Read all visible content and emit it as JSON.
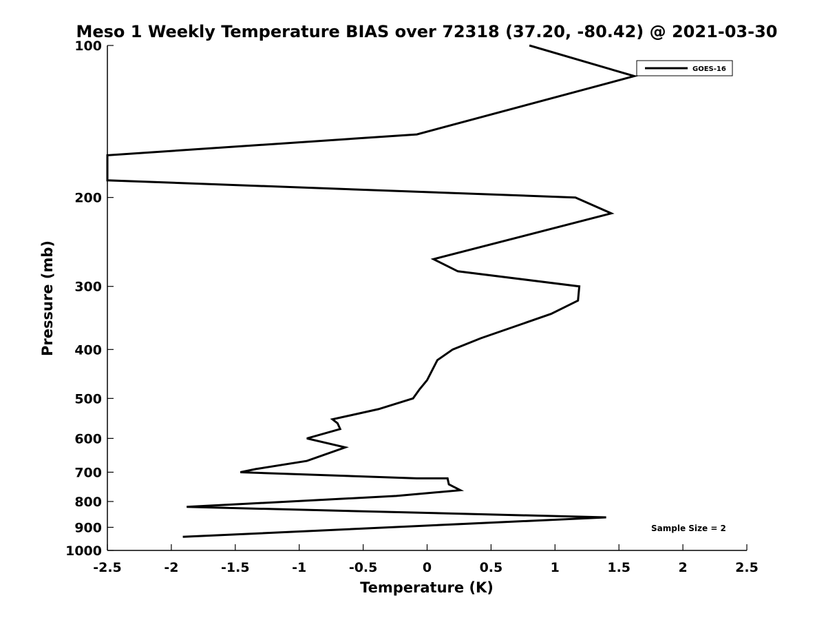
{
  "chart_data": {
    "type": "line",
    "title": "Meso 1 Weekly Temperature BIAS over 72318 (37.20, -80.42) @ 2021-03-30",
    "xlabel": "Temperature (K)",
    "ylabel": "Pressure (mb)",
    "xlim": [
      -2.5,
      2.5
    ],
    "ylim": [
      100,
      1000
    ],
    "y_scale": "log",
    "y_reversed": true,
    "x_ticks": [
      "-2.5",
      "-2",
      "-1.5",
      "-1",
      "-0.5",
      "0",
      "0.5",
      "1",
      "1.5",
      "2",
      "2.5"
    ],
    "y_ticks": [
      "100",
      "200",
      "300",
      "400",
      "500",
      "600",
      "700",
      "800",
      "900",
      "1000"
    ],
    "grid": false,
    "legend_position": "top-right",
    "annotation": "Sample Size = 2",
    "series": [
      {
        "name": "GOES-16",
        "color": "#000000",
        "points": [
          [
            0.8,
            100
          ],
          [
            1.62,
            115
          ],
          [
            -0.08,
            150
          ],
          [
            -2.5,
            165
          ],
          [
            -2.5,
            185
          ],
          [
            1.16,
            200
          ],
          [
            1.44,
            215
          ],
          [
            0.05,
            265
          ],
          [
            0.24,
            280
          ],
          [
            1.19,
            300
          ],
          [
            1.18,
            320
          ],
          [
            0.97,
            340
          ],
          [
            0.42,
            380
          ],
          [
            0.2,
            400
          ],
          [
            0.08,
            420
          ],
          [
            0.0,
            460
          ],
          [
            -0.06,
            480
          ],
          [
            -0.11,
            500
          ],
          [
            -0.38,
            525
          ],
          [
            -0.74,
            550
          ],
          [
            -0.7,
            560
          ],
          [
            -0.68,
            575
          ],
          [
            -0.94,
            600
          ],
          [
            -0.64,
            625
          ],
          [
            -0.94,
            665
          ],
          [
            -1.34,
            690
          ],
          [
            -1.46,
            700
          ],
          [
            -0.08,
            720
          ],
          [
            0.16,
            720
          ],
          [
            0.17,
            740
          ],
          [
            0.26,
            760
          ],
          [
            -0.24,
            780
          ],
          [
            -1.88,
            820
          ],
          [
            1.4,
            860
          ],
          [
            -1.91,
            940
          ]
        ]
      }
    ]
  }
}
